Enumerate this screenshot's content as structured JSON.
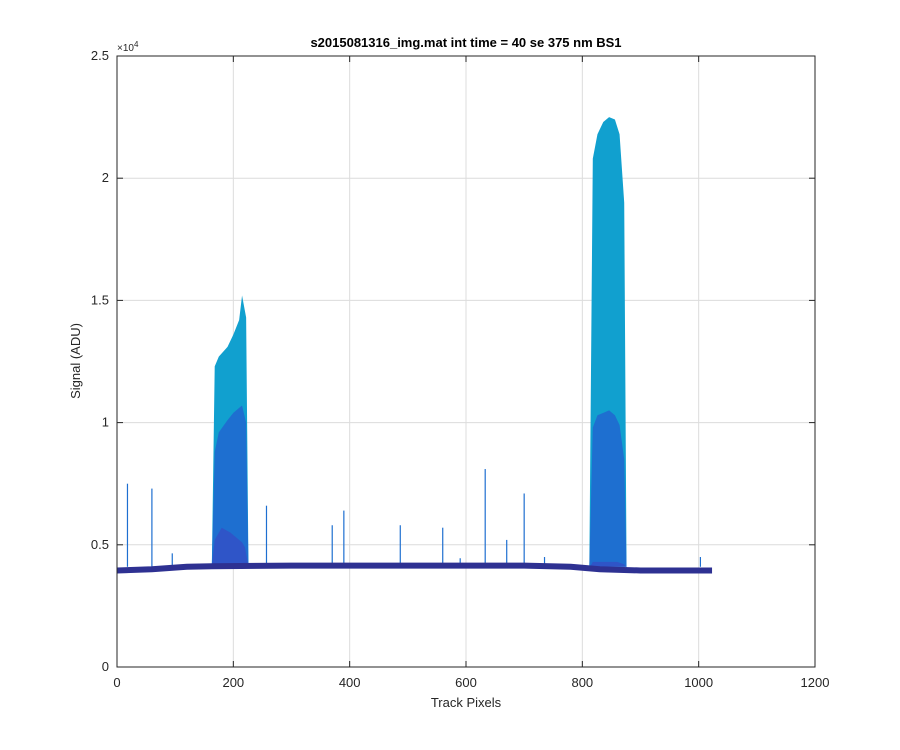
{
  "chart_data": {
    "type": "area",
    "title": "s2015081316_img.mat int time = 40 se  375 nm BS1",
    "xlabel": "Track Pixels",
    "ylabel": "Signal (ADU)",
    "xlim": [
      0,
      1200
    ],
    "ylim": [
      0,
      25000
    ],
    "x_ticks": [
      0,
      200,
      400,
      600,
      800,
      1000,
      1200
    ],
    "x_tick_labels": [
      "0",
      "200",
      "400",
      "600",
      "800",
      "1000",
      "1200"
    ],
    "y_ticks": [
      0,
      5000,
      10000,
      15000,
      20000,
      25000
    ],
    "y_tick_labels": [
      "0",
      "0.5",
      "1",
      "1.5",
      "2",
      "2.5"
    ],
    "y_exponent_label": "×10",
    "y_exponent_power": "4",
    "grid": true,
    "colors": [
      "#2e3192",
      "#2f55c8",
      "#1e6fd0",
      "#11a0cf"
    ],
    "baseline": [
      [
        0,
        3950
      ],
      [
        60,
        4000
      ],
      [
        120,
        4100
      ],
      [
        163,
        4120
      ],
      [
        300,
        4150
      ],
      [
        500,
        4150
      ],
      [
        700,
        4150
      ],
      [
        780,
        4100
      ],
      [
        830,
        4000
      ],
      [
        900,
        3950
      ],
      [
        1023,
        3950
      ]
    ],
    "spikes": [
      [
        18,
        7500
      ],
      [
        60,
        7300
      ],
      [
        95,
        4650
      ],
      [
        257,
        6600
      ],
      [
        370,
        5800
      ],
      [
        390,
        6400
      ],
      [
        487,
        5800
      ],
      [
        560,
        5700
      ],
      [
        590,
        4450
      ],
      [
        633,
        8100
      ],
      [
        670,
        5200
      ],
      [
        700,
        7100
      ],
      [
        735,
        4500
      ],
      [
        1003,
        4500
      ]
    ],
    "series": [
      {
        "name": "",
        "x": [
          163,
          168,
          175,
          190,
          200,
          210,
          215,
          222,
          226
        ],
        "values": [
          4100,
          12300,
          12700,
          13100,
          13600,
          14200,
          15200,
          14300,
          4100
        ]
      },
      {
        "name": "",
        "x": [
          163,
          168,
          175,
          190,
          200,
          210,
          215,
          222,
          226
        ],
        "values": [
          4100,
          8800,
          9600,
          10100,
          10400,
          10600,
          10700,
          10000,
          4100
        ]
      },
      {
        "name": "",
        "x": [
          163,
          168,
          180,
          195,
          205,
          215,
          220,
          226
        ],
        "values": [
          4100,
          5200,
          5700,
          5500,
          5300,
          5100,
          4900,
          4100
        ]
      },
      {
        "name": "",
        "x": [
          812,
          818,
          826,
          836,
          846,
          856,
          864,
          872,
          876
        ],
        "values": [
          4050,
          20800,
          21800,
          22300,
          22500,
          22400,
          21800,
          19000,
          4050
        ]
      },
      {
        "name": "",
        "x": [
          812,
          818,
          826,
          836,
          846,
          856,
          864,
          872,
          876
        ],
        "values": [
          4050,
          9800,
          10300,
          10400,
          10500,
          10300,
          9900,
          8500,
          4050
        ]
      },
      {
        "name": "",
        "x": [
          812,
          818,
          830,
          845,
          860,
          872,
          876
        ],
        "values": [
          4050,
          4300,
          4300,
          4300,
          4300,
          4200,
          4050
        ]
      }
    ]
  }
}
